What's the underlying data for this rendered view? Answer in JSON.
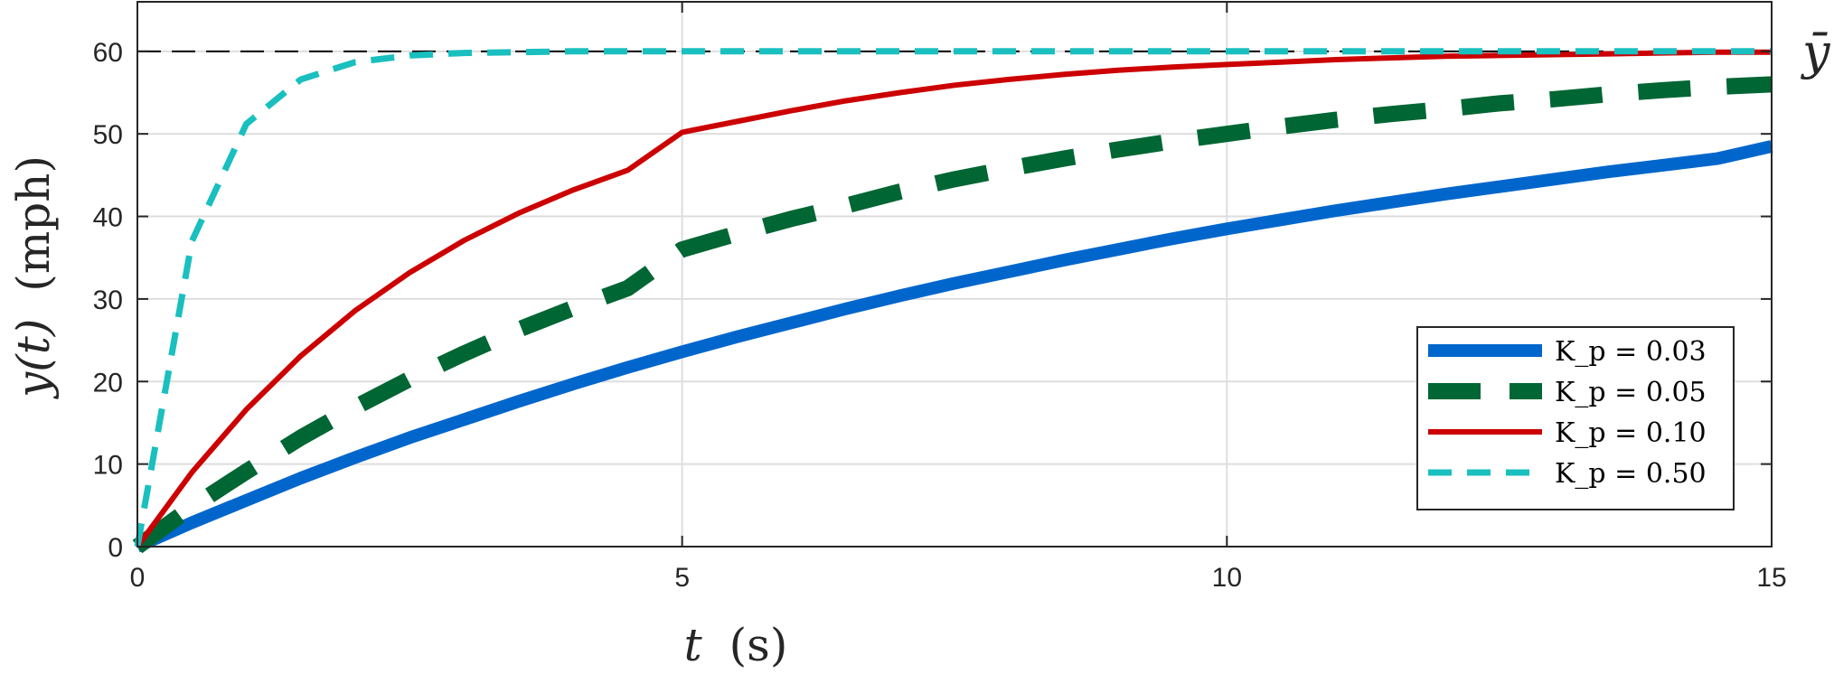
{
  "chart_data": {
    "type": "line",
    "xlabel_var": "t",
    "xlabel_unit": "(s)",
    "ylabel_var": "y(t)",
    "ylabel_unit": "(mph)",
    "xlim": [
      0,
      15
    ],
    "ylim": [
      0,
      66
    ],
    "x_ticks": [
      "0",
      "5",
      "10",
      "15"
    ],
    "y_ticks": [
      "0",
      "10",
      "20",
      "30",
      "40",
      "50",
      "60"
    ],
    "grid": true,
    "legend_position": "bottom-right",
    "reference_line": {
      "label": "ȳ",
      "value": 60,
      "style": "dashed",
      "color": "#000000"
    },
    "x": [
      0,
      0.5,
      1,
      1.5,
      2,
      2.5,
      3,
      3.5,
      4,
      4.5,
      5,
      5.5,
      6,
      6.5,
      7,
      7.5,
      8,
      8.5,
      9,
      9.5,
      10,
      10.5,
      11,
      11.5,
      12,
      12.5,
      13,
      13.5,
      14,
      14.5,
      15
    ],
    "series": [
      {
        "name": "K_p = 0.03",
        "color": "#0066cc",
        "style": "solid",
        "values": [
          0,
          2.9,
          5.6,
          8.3,
          10.8,
          13.2,
          15.4,
          17.6,
          19.7,
          21.7,
          23.6,
          25.4,
          27.1,
          28.8,
          30.4,
          31.9,
          33.3,
          34.7,
          36.0,
          37.3,
          38.5,
          39.6,
          40.7,
          41.7,
          42.7,
          43.6,
          44.5,
          45.4,
          46.2,
          47.0,
          48.5
        ]
      },
      {
        "name": "K_p = 0.05",
        "color": "#006633",
        "style": "dashed",
        "values": [
          0,
          4.8,
          9.1,
          13.2,
          16.9,
          20.3,
          23.4,
          26.3,
          28.9,
          31.3,
          36.0,
          37.9,
          39.7,
          41.3,
          43.0,
          44.5,
          45.8,
          47.0,
          48.1,
          49.1,
          50.0,
          50.9,
          51.7,
          52.4,
          53.0,
          53.7,
          54.2,
          54.8,
          55.3,
          55.7,
          56.0
        ]
      },
      {
        "name": "K_p = 0.10",
        "color": "#cc0000",
        "style": "solid",
        "values": [
          0,
          9.0,
          16.6,
          23.1,
          28.6,
          33.2,
          37.1,
          40.4,
          43.2,
          45.6,
          50.2,
          51.5,
          52.8,
          54.0,
          55.0,
          55.9,
          56.6,
          57.2,
          57.7,
          58.1,
          58.4,
          58.7,
          59.0,
          59.2,
          59.4,
          59.5,
          59.6,
          59.7,
          59.8,
          59.9,
          59.9
        ]
      },
      {
        "name": "K_p = 0.50",
        "color": "#1abfbf",
        "style": "dashed",
        "values": [
          0,
          37.0,
          51.2,
          56.6,
          58.7,
          59.5,
          59.8,
          59.9,
          60.0,
          60.0,
          60.0,
          60.0,
          60.0,
          60.0,
          60.0,
          60.0,
          60.0,
          60.0,
          60.0,
          60.0,
          60.0,
          60.0,
          60.0,
          60.0,
          60.0,
          60.0,
          60.0,
          60.0,
          60.0,
          60.0,
          60.0
        ]
      }
    ]
  }
}
